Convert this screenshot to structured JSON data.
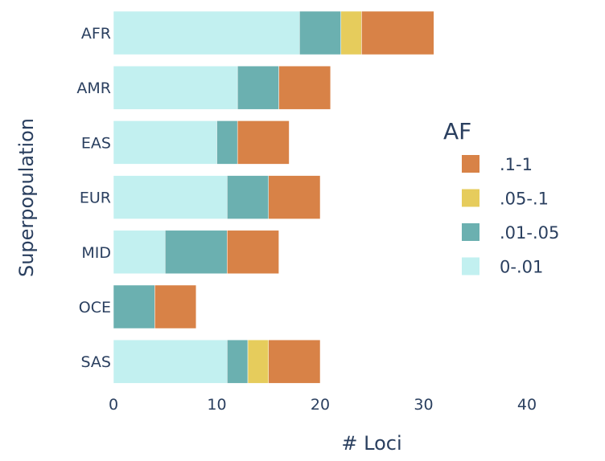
{
  "chart_data": {
    "type": "bar",
    "orientation": "horizontal",
    "barmode": "stack",
    "categories": [
      "AFR",
      "AMR",
      "EAS",
      "EUR",
      "MID",
      "OCE",
      "SAS"
    ],
    "series": [
      {
        "name": "0-.01",
        "color": "#c2f0f0",
        "values": [
          18,
          12,
          10,
          11,
          5,
          0,
          11
        ]
      },
      {
        "name": ".01-.05",
        "color": "#6bb0b0",
        "values": [
          4,
          4,
          2,
          4,
          6,
          4,
          2
        ]
      },
      {
        "name": ".05-.1",
        "color": "#e6cc5c",
        "values": [
          2,
          0,
          0,
          0,
          0,
          0,
          2
        ]
      },
      {
        "name": ".1-1",
        "color": "#d88247",
        "values": [
          7,
          5,
          5,
          5,
          5,
          4,
          5
        ]
      }
    ],
    "xlabel": "# Loci",
    "ylabel": "Superpopulation",
    "xlim": [
      0,
      40
    ],
    "xticks": [
      0,
      10,
      20,
      30,
      40
    ],
    "legend": {
      "title": "AF",
      "position": "right",
      "order": [
        ".1-1",
        ".05-.1",
        ".01-.05",
        "0-.01"
      ]
    }
  }
}
